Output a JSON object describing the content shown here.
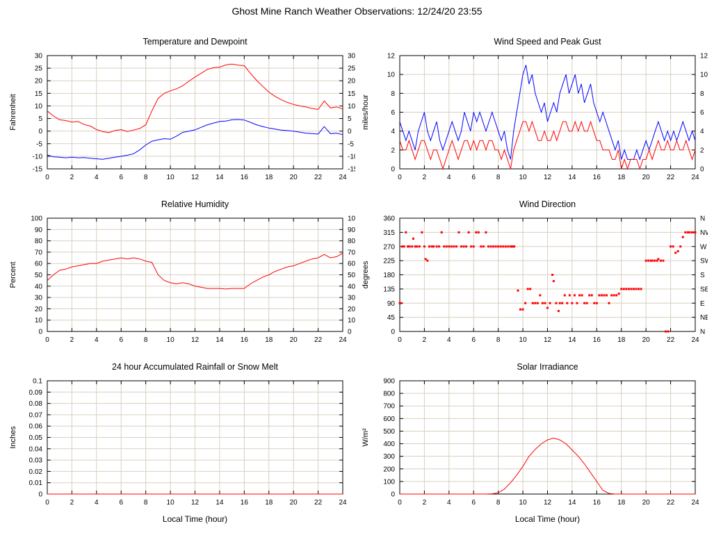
{
  "title": "Ghost Mine Ranch Weather Observations: 12/24/20 23:55",
  "colors": {
    "red": "#ff0000",
    "blue": "#0000ff",
    "grid": "#d8d0c0",
    "axis": "#000000"
  },
  "chart_data": [
    {
      "id": "temperature-dewpoint",
      "type": "line",
      "title": "Temperature and Dewpoint",
      "ylabel": "Fahrenheit",
      "xlabel": "",
      "ylim": [
        -15,
        30
      ],
      "ytick_step": 5,
      "xlim": [
        0,
        24
      ],
      "xtick_step": 2,
      "mirror_y": true,
      "grid": true,
      "series": [
        {
          "name": "temperature",
          "color": "red",
          "x_start": 0,
          "x_step": 0.5,
          "values": [
            8.0,
            6.0,
            4.5,
            4.2,
            3.6,
            3.8,
            2.6,
            2.0,
            0.6,
            -0.2,
            -0.6,
            0.2,
            0.6,
            -0.2,
            0.4,
            1.0,
            2.5,
            8.0,
            13.0,
            15.0,
            16.0,
            16.8,
            18.0,
            19.8,
            21.5,
            23.0,
            24.5,
            25.2,
            25.4,
            26.3,
            26.6,
            26.2,
            26.0,
            23.0,
            20.2,
            17.8,
            15.5,
            13.8,
            12.5,
            11.4,
            10.6,
            10.0,
            9.6,
            9.0,
            8.6,
            12.0,
            9.2,
            9.6,
            8.8
          ]
        },
        {
          "name": "dewpoint",
          "color": "blue",
          "x_start": 0,
          "x_step": 0.5,
          "values": [
            -9.5,
            -10.2,
            -10.4,
            -10.6,
            -10.4,
            -10.6,
            -10.5,
            -10.8,
            -11.0,
            -11.2,
            -10.8,
            -10.4,
            -10.0,
            -9.6,
            -9.0,
            -7.5,
            -5.5,
            -4.0,
            -3.5,
            -3.0,
            -3.2,
            -2.0,
            -0.5,
            0.0,
            0.5,
            1.5,
            2.5,
            3.2,
            3.8,
            4.0,
            4.5,
            4.6,
            4.4,
            3.5,
            2.5,
            1.8,
            1.2,
            0.8,
            0.4,
            0.2,
            0.0,
            -0.4,
            -0.8,
            -1.0,
            -1.2,
            1.8,
            -1.0,
            -0.8,
            -1.4
          ]
        }
      ]
    },
    {
      "id": "wind-speed-gust",
      "type": "line",
      "title": "Wind Speed and Peak Gust",
      "ylabel": "miles/hour",
      "xlabel": "",
      "ylim": [
        0,
        12
      ],
      "ytick_step": 2,
      "xlim": [
        0,
        24
      ],
      "xtick_step": 2,
      "mirror_y": true,
      "grid": true,
      "series": [
        {
          "name": "peak-gust",
          "color": "blue",
          "x_start": 0,
          "x_step": 0.25,
          "values": [
            5,
            4,
            3,
            4,
            3,
            2,
            4,
            5,
            6,
            4,
            3,
            4,
            5,
            3,
            2,
            3,
            4,
            5,
            4,
            3,
            4,
            6,
            5,
            4,
            6,
            5,
            6,
            5,
            4,
            5,
            6,
            5,
            4,
            3,
            4,
            2,
            1,
            4,
            6,
            8,
            10,
            11,
            9,
            10,
            8,
            7,
            6,
            7,
            5,
            6,
            7,
            6,
            8,
            9,
            10,
            8,
            9,
            10,
            8,
            9,
            7,
            8,
            9,
            7,
            6,
            5,
            6,
            5,
            4,
            3,
            2,
            3,
            1,
            2,
            1,
            1,
            1,
            2,
            1,
            2,
            3,
            2,
            3,
            4,
            5,
            4,
            3,
            4,
            3,
            4,
            3,
            4,
            5,
            4,
            3,
            4,
            3
          ]
        },
        {
          "name": "wind-speed",
          "color": "red",
          "x_start": 0,
          "x_step": 0.25,
          "values": [
            3,
            2,
            2,
            3,
            2,
            1,
            2,
            3,
            3,
            2,
            1,
            2,
            2,
            1,
            0,
            1,
            2,
            3,
            2,
            1,
            2,
            3,
            3,
            2,
            3,
            2,
            3,
            3,
            2,
            3,
            3,
            2,
            2,
            1,
            2,
            1,
            0,
            2,
            3,
            4,
            5,
            5,
            4,
            5,
            4,
            3,
            3,
            4,
            3,
            3,
            4,
            3,
            4,
            5,
            5,
            4,
            4,
            5,
            4,
            5,
            4,
            4,
            5,
            4,
            3,
            3,
            2,
            2,
            2,
            1,
            1,
            2,
            0,
            1,
            0,
            1,
            1,
            1,
            0,
            1,
            1,
            2,
            1,
            2,
            3,
            2,
            2,
            3,
            2,
            2,
            3,
            2,
            2,
            3,
            2,
            1,
            2
          ]
        }
      ]
    },
    {
      "id": "relative-humidity",
      "type": "line",
      "title": "Relative Humidity",
      "ylabel": "Percent",
      "xlabel": "",
      "ylim": [
        0,
        100
      ],
      "ytick_step": 10,
      "xlim": [
        0,
        24
      ],
      "xtick_step": 2,
      "mirror_y": true,
      "grid": true,
      "series": [
        {
          "name": "humidity",
          "color": "red",
          "x_start": 0,
          "x_step": 0.5,
          "values": [
            45,
            50,
            54,
            55,
            57,
            58,
            59,
            60,
            60,
            62,
            63,
            64,
            65,
            64,
            65,
            64,
            62,
            61,
            50,
            45,
            43,
            42,
            43,
            42,
            40,
            39,
            38,
            38,
            38,
            37.5,
            38,
            38,
            38,
            42,
            45,
            48,
            50,
            53,
            55,
            57,
            58,
            60,
            62,
            64,
            65,
            68,
            65,
            66,
            69
          ]
        }
      ]
    },
    {
      "id": "wind-direction",
      "type": "scatter",
      "title": "Wind Direction",
      "ylabel": "degrees",
      "xlabel": "",
      "ylim": [
        0,
        360
      ],
      "ytick_step": 45,
      "xlim": [
        0,
        24
      ],
      "xtick_step": 2,
      "mirror_y": false,
      "grid": true,
      "right_labels": [
        {
          "v": 360,
          "label": "N"
        },
        {
          "v": 315,
          "label": "NW"
        },
        {
          "v": 270,
          "label": "W"
        },
        {
          "v": 225,
          "label": "SW"
        },
        {
          "v": 180,
          "label": "S"
        },
        {
          "v": 135,
          "label": "SE"
        },
        {
          "v": 90,
          "label": "E"
        },
        {
          "v": 45,
          "label": "NE"
        },
        {
          "v": 0,
          "label": "N"
        }
      ],
      "series": [
        {
          "name": "direction",
          "color": "red",
          "points": [
            [
              0,
              90
            ],
            [
              0.1,
              90
            ],
            [
              0.2,
              270
            ],
            [
              0.35,
              270
            ],
            [
              0.5,
              315
            ],
            [
              0.65,
              270
            ],
            [
              0.8,
              270
            ],
            [
              1,
              270
            ],
            [
              1.1,
              295
            ],
            [
              1.25,
              270
            ],
            [
              1.4,
              270
            ],
            [
              1.6,
              270
            ],
            [
              1.8,
              315
            ],
            [
              2,
              270
            ],
            [
              2.1,
              230
            ],
            [
              2.25,
              225
            ],
            [
              2.4,
              270
            ],
            [
              2.6,
              270
            ],
            [
              2.75,
              270
            ],
            [
              3,
              270
            ],
            [
              3.2,
              270
            ],
            [
              3.4,
              315
            ],
            [
              3.6,
              270
            ],
            [
              3.8,
              270
            ],
            [
              4,
              270
            ],
            [
              4.2,
              270
            ],
            [
              4.4,
              270
            ],
            [
              4.6,
              270
            ],
            [
              4.8,
              315
            ],
            [
              5,
              270
            ],
            [
              5.2,
              270
            ],
            [
              5.4,
              270
            ],
            [
              5.6,
              315
            ],
            [
              5.8,
              270
            ],
            [
              6,
              270
            ],
            [
              6.2,
              315
            ],
            [
              6.4,
              315
            ],
            [
              6.6,
              270
            ],
            [
              6.8,
              270
            ],
            [
              7,
              315
            ],
            [
              7.2,
              270
            ],
            [
              7.4,
              270
            ],
            [
              7.6,
              270
            ],
            [
              7.8,
              270
            ],
            [
              8,
              270
            ],
            [
              8.2,
              270
            ],
            [
              8.4,
              270
            ],
            [
              8.6,
              270
            ],
            [
              8.8,
              270
            ],
            [
              9,
              270
            ],
            [
              9.1,
              270
            ],
            [
              9.2,
              270
            ],
            [
              9.3,
              270
            ],
            [
              9.6,
              130
            ],
            [
              9.8,
              70
            ],
            [
              10,
              70
            ],
            [
              10.2,
              90
            ],
            [
              10.4,
              135
            ],
            [
              10.6,
              135
            ],
            [
              10.8,
              90
            ],
            [
              11,
              90
            ],
            [
              11.2,
              90
            ],
            [
              11.4,
              115
            ],
            [
              11.6,
              90
            ],
            [
              11.8,
              90
            ],
            [
              12,
              75
            ],
            [
              12.2,
              90
            ],
            [
              12.4,
              180
            ],
            [
              12.5,
              160
            ],
            [
              12.7,
              90
            ],
            [
              12.9,
              65
            ],
            [
              13,
              90
            ],
            [
              13.2,
              90
            ],
            [
              13.4,
              115
            ],
            [
              13.6,
              90
            ],
            [
              13.8,
              115
            ],
            [
              14,
              90
            ],
            [
              14.2,
              115
            ],
            [
              14.4,
              90
            ],
            [
              14.6,
              115
            ],
            [
              14.8,
              115
            ],
            [
              15,
              90
            ],
            [
              15.2,
              90
            ],
            [
              15.4,
              115
            ],
            [
              15.6,
              115
            ],
            [
              15.8,
              90
            ],
            [
              16,
              90
            ],
            [
              16.2,
              115
            ],
            [
              16.4,
              115
            ],
            [
              16.6,
              115
            ],
            [
              16.8,
              115
            ],
            [
              17,
              90
            ],
            [
              17.2,
              115
            ],
            [
              17.4,
              115
            ],
            [
              17.6,
              115
            ],
            [
              17.8,
              120
            ],
            [
              18,
              135
            ],
            [
              18.2,
              135
            ],
            [
              18.4,
              135
            ],
            [
              18.6,
              135
            ],
            [
              18.8,
              135
            ],
            [
              19,
              135
            ],
            [
              19.2,
              135
            ],
            [
              19.4,
              135
            ],
            [
              19.6,
              135
            ],
            [
              20,
              225
            ],
            [
              20.2,
              225
            ],
            [
              20.4,
              225
            ],
            [
              20.5,
              225
            ],
            [
              20.7,
              225
            ],
            [
              20.9,
              225
            ],
            [
              21,
              230
            ],
            [
              21.2,
              225
            ],
            [
              21.4,
              225
            ],
            [
              21.6,
              0
            ],
            [
              21.8,
              0
            ],
            [
              22,
              270
            ],
            [
              22.2,
              270
            ],
            [
              22.4,
              250
            ],
            [
              22.6,
              255
            ],
            [
              22.8,
              270
            ],
            [
              23,
              300
            ],
            [
              23.2,
              315
            ],
            [
              23.4,
              315
            ],
            [
              23.5,
              315
            ],
            [
              23.7,
              315
            ],
            [
              23.9,
              315
            ],
            [
              24,
              315
            ]
          ]
        }
      ]
    },
    {
      "id": "rainfall",
      "type": "line",
      "title": "24 hour Accumulated Rainfall or Snow Melt",
      "ylabel": "Inches",
      "xlabel": "Local Time (hour)",
      "ylim": [
        0,
        0.1
      ],
      "ytick_step": 0.01,
      "xlim": [
        0,
        24
      ],
      "xtick_step": 2,
      "mirror_y": false,
      "grid": true,
      "series": [
        {
          "name": "rainfall",
          "color": "red",
          "x_start": 0,
          "x_step": 24,
          "values": [
            0,
            0
          ]
        }
      ]
    },
    {
      "id": "solar-irradiance",
      "type": "line",
      "title": "Solar Irradiance",
      "ylabel": "W/m²",
      "xlabel": "Local Time (hour)",
      "ylim": [
        0,
        900
      ],
      "ytick_step": 100,
      "xlim": [
        0,
        24
      ],
      "xtick_step": 2,
      "mirror_y": false,
      "grid": true,
      "series": [
        {
          "name": "irradiance",
          "color": "red",
          "x_start": 0,
          "x_step": 0.5,
          "values": [
            0,
            0,
            0,
            0,
            0,
            0,
            0,
            0,
            0,
            0,
            0,
            0,
            0,
            0,
            0,
            2,
            10,
            40,
            90,
            150,
            220,
            300,
            355,
            400,
            430,
            445,
            430,
            400,
            350,
            300,
            240,
            170,
            100,
            30,
            5,
            0,
            0,
            0,
            0,
            0,
            0,
            0,
            0,
            0,
            0,
            0,
            0,
            0,
            0
          ]
        }
      ]
    }
  ]
}
